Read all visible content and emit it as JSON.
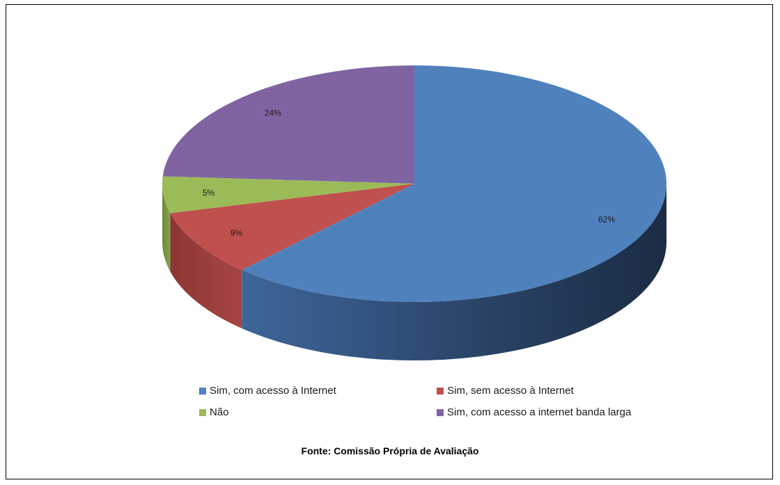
{
  "chart_data": {
    "type": "pie",
    "title": "",
    "slices": [
      {
        "label": "Sim, com acesso à Internet",
        "value": 62,
        "data_label": "62%",
        "color": "#4F81BD"
      },
      {
        "label": "Sim, sem acesso à Internet",
        "value": 9,
        "data_label": "9%",
        "color": "#C0504D"
      },
      {
        "label": "Não",
        "value": 5,
        "data_label": "5%",
        "color": "#9BBB59"
      },
      {
        "label": "Sim, com acesso a internet banda larga",
        "value": 24,
        "data_label": "24%",
        "color": "#8064A2"
      }
    ],
    "legend_placement": "bottom",
    "three_d": true
  },
  "footer": {
    "source_text": "Fonte: Comissão Própria de Avaliação"
  }
}
